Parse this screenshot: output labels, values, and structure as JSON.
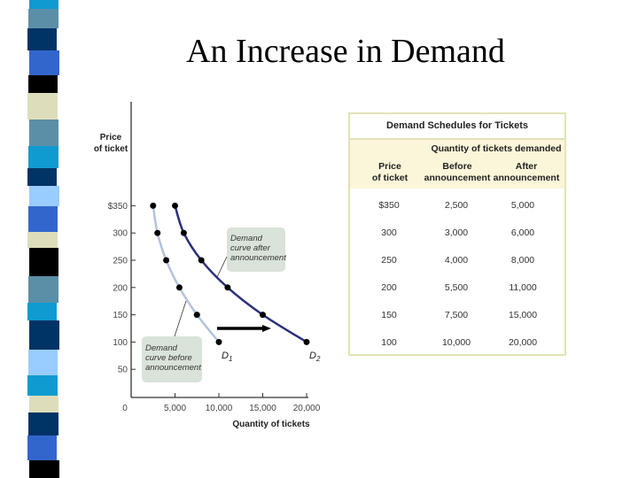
{
  "slide": {
    "title": "An Increase in Demand",
    "stripe_colors": [
      {
        "color": "#0f9bd0",
        "h": 10
      },
      {
        "color": "#5b8fa8",
        "h": 22
      },
      {
        "color": "#003366",
        "h": 25
      },
      {
        "color": "#3366cc",
        "h": 28
      },
      {
        "color": "#000000",
        "h": 20
      },
      {
        "color": "#ddddbb",
        "h": 30
      },
      {
        "color": "#5b8fa8",
        "h": 30
      },
      {
        "color": "#0f9bd0",
        "h": 25
      },
      {
        "color": "#003366",
        "h": 20
      },
      {
        "color": "#99ccff",
        "h": 23
      },
      {
        "color": "#3366cc",
        "h": 29
      },
      {
        "color": "#ddddbb",
        "h": 18
      },
      {
        "color": "#000000",
        "h": 32
      },
      {
        "color": "#5b8fa8",
        "h": 30
      },
      {
        "color": "#0f9bd0",
        "h": 20
      },
      {
        "color": "#003366",
        "h": 33
      },
      {
        "color": "#99ccff",
        "h": 29
      },
      {
        "color": "#0f9bd0",
        "h": 23
      },
      {
        "color": "#ddddbb",
        "h": 19
      },
      {
        "color": "#003366",
        "h": 26
      },
      {
        "color": "#3366cc",
        "h": 28
      },
      {
        "color": "#000000",
        "h": 20
      }
    ]
  },
  "chart_data": {
    "type": "line",
    "title": "An Increase in Demand",
    "xlabel": "Quantity of tickets",
    "ylabel": "Price of ticket",
    "xlim": [
      0,
      20000
    ],
    "ylim": [
      0,
      350
    ],
    "x_ticks": [
      "0",
      "5,000",
      "10,000",
      "15,000",
      "20,000"
    ],
    "y_ticks": [
      "50",
      "100",
      "150",
      "200",
      "250",
      "300",
      "$350"
    ],
    "series": [
      {
        "name": "D1",
        "label": "Demand curve before announcement",
        "color": "#b4c3db",
        "points": [
          [
            2500,
            350
          ],
          [
            3000,
            300
          ],
          [
            4000,
            250
          ],
          [
            5500,
            200
          ],
          [
            7500,
            150
          ],
          [
            10000,
            100
          ]
        ]
      },
      {
        "name": "D2",
        "label": "Demand curve after announcement",
        "color": "#2a2f7a",
        "points": [
          [
            5000,
            350
          ],
          [
            6000,
            300
          ],
          [
            8000,
            250
          ],
          [
            11000,
            200
          ],
          [
            15000,
            150
          ],
          [
            20000,
            100
          ]
        ]
      }
    ],
    "annotations": [
      {
        "text": "Demand curve after announcement"
      },
      {
        "text": "Demand curve before announcement"
      },
      {
        "text": "shift arrow right"
      }
    ],
    "grid": false,
    "legend": "none"
  },
  "table": {
    "caption": "Demand Schedules for Tickets",
    "group_header": "Quantity of tickets demanded",
    "columns": [
      "Price of ticket",
      "Before announcement",
      "After announcement"
    ],
    "rows": [
      [
        "$350",
        "2,500",
        "5,000"
      ],
      [
        "300",
        "3,000",
        "6,000"
      ],
      [
        "250",
        "4,000",
        "8,000"
      ],
      [
        "200",
        "5,500",
        "11,000"
      ],
      [
        "150",
        "7,500",
        "15,000"
      ],
      [
        "100",
        "10,000",
        "20,000"
      ]
    ]
  },
  "labels": {
    "y_axis_line1": "Price",
    "y_axis_line2": "of ticket",
    "x_axis": "Quantity of tickets",
    "d1": "D",
    "d1_sub": "1",
    "d2": "D",
    "d2_sub": "2",
    "after_box": [
      "Demand",
      "curve after",
      "announcement"
    ],
    "before_box": [
      "Demand",
      "curve before",
      "announcement"
    ],
    "table_col1_line1": "Price",
    "table_col1_line2": "of ticket",
    "table_col2_line1": "Before",
    "table_col2_line2": "announcement",
    "table_col3_line1": "After",
    "table_col3_line2": "announcement"
  }
}
